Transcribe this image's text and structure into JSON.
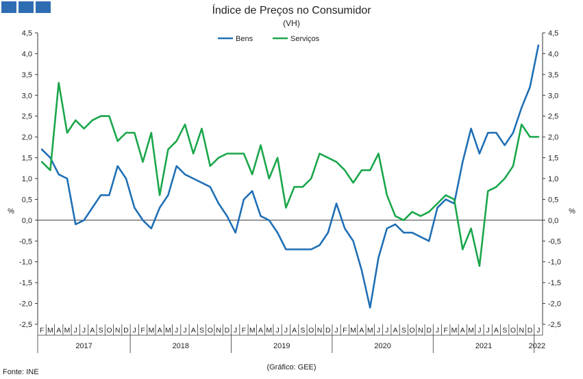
{
  "header": {
    "title": "Índice de Preços no Consumidor",
    "subtitle": "(VH)"
  },
  "footer": {
    "source": "Fonte: INE",
    "credit": "(Gráfico: GEE)"
  },
  "colors": {
    "bens": "#1f6fb5",
    "servicos": "#1aa64a",
    "logo": "#2f6db3",
    "axis": "#333333"
  },
  "chart_data": {
    "type": "line",
    "title": "Índice de Preços no Consumidor",
    "subtitle": "(VH)",
    "ylabel": "%",
    "ylim": [
      -2.5,
      4.5
    ],
    "ytick_step": 0.5,
    "ytick_labels": [
      "-2,5",
      "-2,0",
      "-1,5",
      "-1,0",
      "-0,5",
      "0,0",
      "0,5",
      "1,0",
      "1,5",
      "2,0",
      "2,5",
      "3,0",
      "3,5",
      "4,0",
      "4,5"
    ],
    "legend_position": "top-center",
    "grid": false,
    "month_labels": [
      "F",
      "M",
      "A",
      "M",
      "J",
      "J",
      "A",
      "S",
      "O",
      "N",
      "D",
      "J",
      "F",
      "M",
      "A",
      "M",
      "J",
      "J",
      "A",
      "S",
      "O",
      "N",
      "D",
      "J",
      "F",
      "M",
      "A",
      "M",
      "J",
      "J",
      "A",
      "S",
      "O",
      "N",
      "D",
      "J",
      "F",
      "M",
      "A",
      "M",
      "J",
      "J",
      "A",
      "S",
      "O",
      "N",
      "D",
      "J",
      "F",
      "M",
      "A",
      "M",
      "J",
      "J",
      "A",
      "S",
      "O",
      "N",
      "D",
      "J"
    ],
    "year_labels": [
      "2017",
      "2018",
      "2019",
      "2020",
      "2021",
      "2022"
    ],
    "series": [
      {
        "name": "Bens",
        "values": [
          1.7,
          1.5,
          1.1,
          1.0,
          -0.1,
          0.0,
          0.3,
          0.6,
          0.6,
          1.3,
          1.0,
          0.3,
          0.0,
          -0.2,
          0.3,
          0.6,
          1.3,
          1.1,
          1.0,
          0.9,
          0.8,
          0.4,
          0.1,
          -0.3,
          0.5,
          0.7,
          0.1,
          0.0,
          -0.3,
          -0.7,
          -0.7,
          -0.7,
          -0.7,
          -0.6,
          -0.3,
          0.4,
          -0.2,
          -0.5,
          -1.2,
          -2.1,
          -0.9,
          -0.2,
          -0.1,
          -0.3,
          -0.3,
          -0.4,
          -0.5,
          0.3,
          0.5,
          0.4,
          1.4,
          2.2,
          1.6,
          2.1,
          2.1,
          1.8,
          2.1,
          2.7,
          3.2,
          4.2
        ]
      },
      {
        "name": "Serviços",
        "values": [
          1.4,
          1.2,
          3.3,
          2.1,
          2.4,
          2.2,
          2.4,
          2.5,
          2.5,
          1.9,
          2.1,
          2.1,
          1.4,
          2.1,
          0.6,
          1.7,
          1.9,
          2.3,
          1.6,
          2.2,
          1.3,
          1.5,
          1.6,
          1.6,
          1.6,
          1.1,
          1.8,
          1.0,
          1.5,
          0.3,
          0.8,
          0.8,
          1.0,
          1.6,
          1.5,
          1.4,
          1.2,
          0.9,
          1.2,
          1.2,
          1.6,
          0.6,
          0.1,
          0.0,
          0.2,
          0.1,
          0.2,
          0.4,
          0.6,
          0.5,
          -0.7,
          -0.2,
          -1.1,
          0.7,
          0.8,
          1.0,
          1.3,
          2.3,
          2.0,
          2.0
        ]
      }
    ]
  }
}
